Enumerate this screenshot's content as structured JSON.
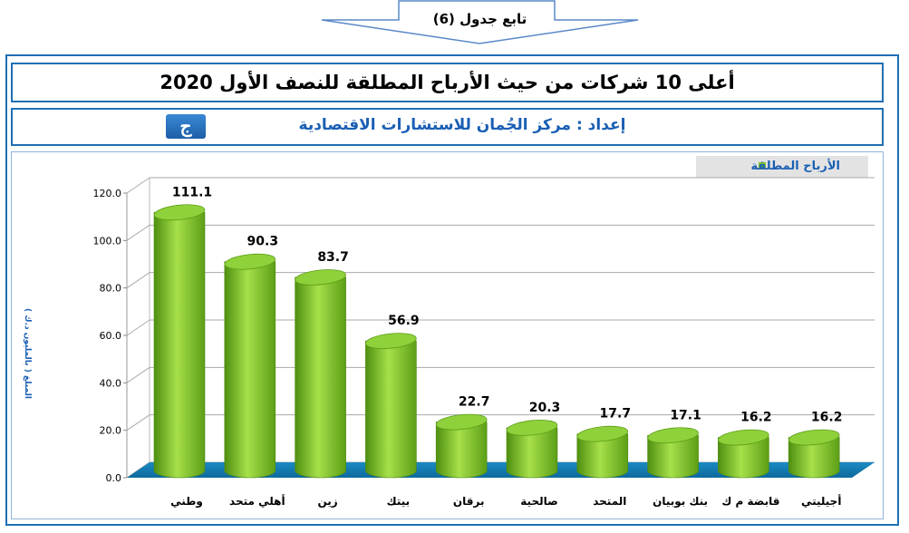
{
  "header": {
    "continuation_label": "تابع جدول (6)",
    "title": "أعلى 10 شركات من حيث الأرباح المطلقة للنصف الأول 2020",
    "credit": "إعداد : مركز الجُمان للاستشارات الاقتصادية"
  },
  "colors": {
    "frame": "#1f6fb5",
    "bar": "#7fc42a",
    "floor": "#1a8ac2",
    "text_accent": "#1a5fb4"
  },
  "chart_data": {
    "type": "bar",
    "categories": [
      "وطني",
      "أهلي متحد",
      "زين",
      "بيتك",
      "برقان",
      "صالحية",
      "المتحد",
      "بنك بوبيان",
      "قابضة م ك",
      "أجيليتي"
    ],
    "series": [
      {
        "name": "الأرباح المطلقة",
        "values": [
          111.1,
          90.3,
          83.7,
          56.9,
          22.7,
          20.3,
          17.7,
          17.1,
          16.2,
          16.2
        ],
        "labels": [
          "111.1",
          "90.3",
          "83.7",
          "56.9",
          "22.7",
          "20.3",
          "17.7",
          "17.1",
          "16.2",
          "16.2"
        ]
      }
    ],
    "yticks": [
      "0.0",
      "20.0",
      "40.0",
      "60.0",
      "80.0",
      "100.0",
      "120.0"
    ],
    "ylim": [
      0,
      120
    ],
    "ylabel": "المبلغ ( بالمليون د.ك )",
    "grid": true,
    "legend_position": "top-right"
  }
}
